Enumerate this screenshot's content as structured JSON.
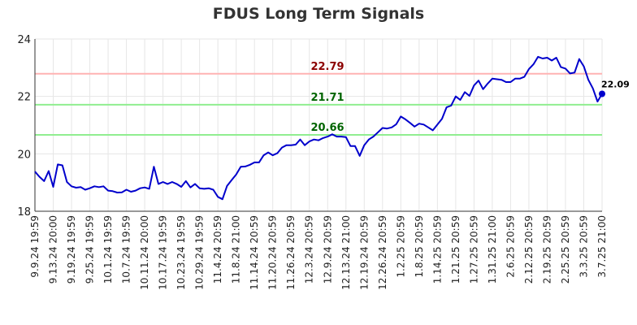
{
  "chart_data": {
    "type": "line",
    "title": "FDUS Long Term Signals",
    "xlabel": "",
    "ylabel": "",
    "ylim": [
      18,
      24
    ],
    "yticks": [
      18,
      20,
      22,
      24
    ],
    "grid": true,
    "x_tick_labels": [
      "9.9.24 19:59",
      "9.13.24 20:00",
      "9.19.24 19:59",
      "9.25.24 19:59",
      "10.1.24 19:59",
      "10.7.24 19:59",
      "10.11.24 20:00",
      "10.17.24 19:59",
      "10.23.24 19:59",
      "10.29.24 19:59",
      "11.4.24 20:59",
      "11.8.24 21:00",
      "11.14.24 20:59",
      "11.20.24 20:59",
      "11.26.24 20:59",
      "12.3.24 20:59",
      "12.9.24 20:59",
      "12.13.24 21:00",
      "12.19.24 20:59",
      "12.26.24 20:59",
      "1.2.25 20:59",
      "1.8.25 20:59",
      "1.14.25 20:59",
      "1.21.25 20:59",
      "1.27.25 20:59",
      "1.31.25 21:00",
      "2.6.25 20:59",
      "2.12.25 20:59",
      "2.19.25 20:59",
      "2.25.25 20:59",
      "3.3.25 20:59",
      "3.7.25 21:00"
    ],
    "reference_lines": [
      {
        "value": 22.79,
        "label": "22.79",
        "color": "#ffb3b3",
        "label_color": "#8b0000"
      },
      {
        "value": 21.71,
        "label": "21.71",
        "color": "#90ee90",
        "label_color": "#006400"
      },
      {
        "value": 20.66,
        "label": "20.66",
        "color": "#90ee90",
        "label_color": "#006400"
      }
    ],
    "last_value_label": "22.09",
    "line_color": "#0000cc",
    "series": [
      {
        "values": [
          19.38,
          19.2,
          19.05,
          19.4,
          18.85,
          19.63,
          19.6,
          19.02,
          18.87,
          18.82,
          18.84,
          18.75,
          18.8,
          18.87,
          18.84,
          18.87,
          18.72,
          18.7,
          18.65,
          18.66,
          18.75,
          18.68,
          18.72,
          18.8,
          18.83,
          18.78,
          19.55,
          18.95,
          19.02,
          18.95,
          19.02,
          18.95,
          18.85,
          19.05,
          18.83,
          18.95,
          18.8,
          18.78,
          18.8,
          18.75,
          18.5,
          18.42,
          18.88,
          19.08,
          19.28,
          19.55,
          19.56,
          19.62,
          19.7,
          19.7,
          19.95,
          20.05,
          19.95,
          20.02,
          20.22,
          20.3,
          20.3,
          20.32,
          20.5,
          20.3,
          20.43,
          20.5,
          20.47,
          20.55,
          20.6,
          20.68,
          20.6,
          20.6,
          20.58,
          20.27,
          20.27,
          19.93,
          20.3,
          20.5,
          20.6,
          20.75,
          20.9,
          20.88,
          20.92,
          21.03,
          21.3,
          21.2,
          21.08,
          20.95,
          21.05,
          21.02,
          20.92,
          20.82,
          21.02,
          21.22,
          21.62,
          21.68,
          22.0,
          21.88,
          22.15,
          22.02,
          22.38,
          22.55,
          22.25,
          22.45,
          22.62,
          22.6,
          22.58,
          22.5,
          22.5,
          22.62,
          22.62,
          22.68,
          22.95,
          23.12,
          23.38,
          23.32,
          23.35,
          23.25,
          23.35,
          23.02,
          22.97,
          22.8,
          22.83,
          23.3,
          23.05,
          22.58,
          22.28,
          21.82,
          22.09
        ]
      }
    ]
  }
}
